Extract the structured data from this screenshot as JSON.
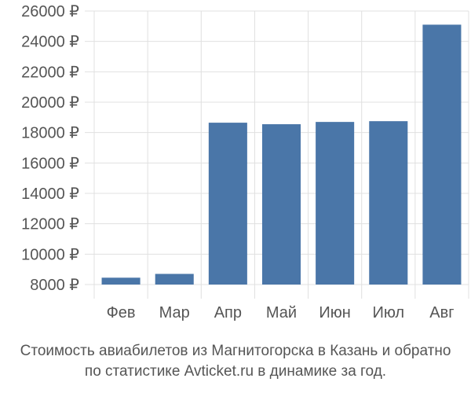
{
  "chart_data": {
    "type": "bar",
    "categories": [
      "Фев",
      "Мар",
      "Апр",
      "Май",
      "Июн",
      "Июл",
      "Авг"
    ],
    "values": [
      8450,
      8700,
      18650,
      18550,
      18700,
      18750,
      25100
    ],
    "y_ticks": [
      "8000 ₽",
      "10000 ₽",
      "12000 ₽",
      "14000 ₽",
      "16000 ₽",
      "18000 ₽",
      "20000 ₽",
      "22000 ₽",
      "24000 ₽",
      "26000 ₽"
    ],
    "y_tick_values": [
      8000,
      10000,
      12000,
      14000,
      16000,
      18000,
      20000,
      22000,
      24000,
      26000
    ],
    "ylim": [
      8000,
      26000
    ],
    "grid": true,
    "legend": "none",
    "bar_color": "#4a76a8",
    "grid_color": "#e0e0e0"
  },
  "caption": {
    "line1": "Стоимость авиабилетов из Магнитогорска в Казань и обратно",
    "line2": "по статистике Avticket.ru в динамике за год."
  }
}
